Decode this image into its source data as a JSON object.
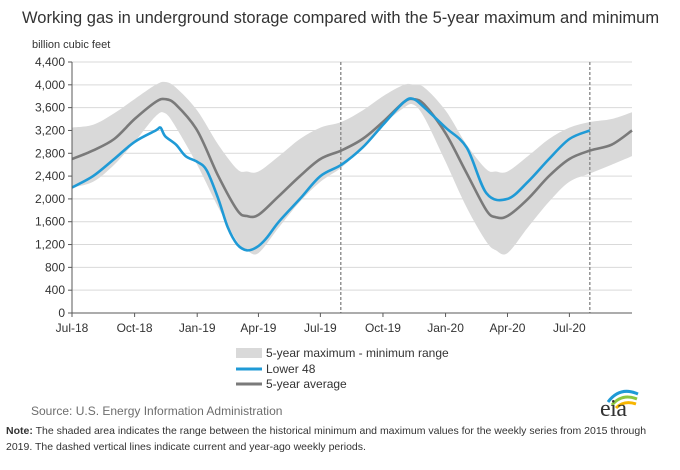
{
  "title": "Working gas in underground  storage compared with the 5-year maximum and minimum",
  "units_label": "billion cubic feet",
  "source": "Source:  U.S. Energy Information Administration",
  "note_label": "Note:",
  "note_text": " The shaded area indicates the range between the historical minimum and maximum values for the weekly series from 2015 through 2019. The dashed vertical lines indicate current and year-ago weekly periods.",
  "logo_text": "eia",
  "colors": {
    "range": "#d9d9d9",
    "lower48": "#1f9ad6",
    "average": "#7a7a7a",
    "grid": "#d9d9d9",
    "axis": "#595959",
    "logo_blue": "#1f9ad6",
    "logo_green": "#8cc63f",
    "logo_yellow": "#f7b500"
  },
  "chart_data": {
    "type": "line",
    "title": "Working gas in underground  storage compared with the 5-year maximum and minimum",
    "ylabel": "billion cubic feet",
    "ylim": [
      0,
      4400
    ],
    "yticks": [
      0,
      400,
      800,
      1200,
      1600,
      2000,
      2400,
      2800,
      3200,
      3600,
      4000,
      4400
    ],
    "ytick_labels": [
      "0",
      "400",
      "800",
      "1,200",
      "1,600",
      "2,000",
      "2,400",
      "2,800",
      "3,200",
      "3,600",
      "4,000",
      "4,400"
    ],
    "xlim": [
      "2018-07-01",
      "2020-10-01"
    ],
    "x_tick_labels": [
      {
        "date": "2018-07-01",
        "label": "Jul-18"
      },
      {
        "date": "2018-10-01",
        "label": "Oct-18"
      },
      {
        "date": "2019-01-01",
        "label": "Jan-19"
      },
      {
        "date": "2019-04-01",
        "label": "Apr-19"
      },
      {
        "date": "2019-07-01",
        "label": "Jul-19"
      },
      {
        "date": "2019-10-01",
        "label": "Oct-19"
      },
      {
        "date": "2020-01-01",
        "label": "Jan-20"
      },
      {
        "date": "2020-04-01",
        "label": "Apr-20"
      },
      {
        "date": "2020-07-01",
        "label": "Jul-20"
      }
    ],
    "grid": true,
    "legend_position": "bottom",
    "vertical_markers": [
      {
        "date": "2019-07-31",
        "style": "dashed"
      },
      {
        "date": "2020-07-31",
        "style": "dashed"
      }
    ],
    "series": [
      {
        "name": "5-year maximum - minimum range",
        "kind": "band",
        "x": [
          "2018-07-01",
          "2018-08-01",
          "2018-09-01",
          "2018-10-01",
          "2018-11-01",
          "2018-11-15",
          "2018-12-01",
          "2019-01-01",
          "2019-02-01",
          "2019-03-01",
          "2019-03-15",
          "2019-04-01",
          "2019-05-01",
          "2019-06-01",
          "2019-07-01",
          "2019-08-01",
          "2019-09-01",
          "2019-10-01",
          "2019-11-01",
          "2019-11-15",
          "2019-12-01",
          "2020-01-01",
          "2020-02-01",
          "2020-03-01",
          "2020-03-15",
          "2020-04-01",
          "2020-05-01",
          "2020-06-01",
          "2020-07-01",
          "2020-08-01",
          "2020-09-01",
          "2020-10-01"
        ],
        "max": [
          3250,
          3300,
          3500,
          3750,
          4000,
          4050,
          3950,
          3550,
          2950,
          2520,
          2480,
          2480,
          2750,
          3050,
          3250,
          3350,
          3550,
          3800,
          4000,
          4000,
          3950,
          3550,
          2950,
          2520,
          2480,
          2480,
          2750,
          3050,
          3250,
          3350,
          3400,
          3520
        ],
        "min": [
          2200,
          2300,
          2600,
          3000,
          3450,
          3500,
          3250,
          2600,
          1850,
          1250,
          1100,
          1050,
          1500,
          1950,
          2300,
          2550,
          2900,
          3300,
          3600,
          3650,
          3420,
          2650,
          1850,
          1250,
          1100,
          1050,
          1500,
          1950,
          2300,
          2450,
          2600,
          2750
        ]
      },
      {
        "name": "Lower 48",
        "kind": "line",
        "x": [
          "2018-07-01",
          "2018-08-01",
          "2018-09-01",
          "2018-10-01",
          "2018-11-01",
          "2018-11-08",
          "2018-11-15",
          "2018-12-01",
          "2018-12-15",
          "2019-01-01",
          "2019-01-15",
          "2019-02-01",
          "2019-02-15",
          "2019-03-01",
          "2019-03-15",
          "2019-03-29",
          "2019-04-12",
          "2019-05-01",
          "2019-06-01",
          "2019-07-01",
          "2019-08-01",
          "2019-09-01",
          "2019-10-01",
          "2019-11-01",
          "2019-11-15",
          "2019-12-01",
          "2020-01-01",
          "2020-02-01",
          "2020-03-01",
          "2020-04-01",
          "2020-05-01",
          "2020-06-01",
          "2020-07-01",
          "2020-07-31"
        ],
        "values": [
          2200,
          2400,
          2700,
          3000,
          3200,
          3250,
          3100,
          2950,
          2750,
          2650,
          2500,
          2000,
          1500,
          1200,
          1100,
          1150,
          1300,
          1600,
          2000,
          2400,
          2600,
          2900,
          3300,
          3700,
          3750,
          3600,
          3250,
          2900,
          2100,
          2000,
          2300,
          2700,
          3050,
          3200
        ]
      },
      {
        "name": "5-year average",
        "kind": "line",
        "x": [
          "2018-07-01",
          "2018-08-01",
          "2018-09-01",
          "2018-10-01",
          "2018-11-01",
          "2018-11-15",
          "2018-12-01",
          "2019-01-01",
          "2019-02-01",
          "2019-03-01",
          "2019-03-15",
          "2019-04-01",
          "2019-05-01",
          "2019-06-01",
          "2019-07-01",
          "2019-08-01",
          "2019-09-01",
          "2019-10-01",
          "2019-11-01",
          "2019-11-15",
          "2019-12-01",
          "2020-01-01",
          "2020-02-01",
          "2020-03-01",
          "2020-03-15",
          "2020-04-01",
          "2020-05-01",
          "2020-06-01",
          "2020-07-01",
          "2020-08-01",
          "2020-09-01",
          "2020-10-01"
        ],
        "values": [
          2700,
          2850,
          3050,
          3400,
          3700,
          3750,
          3650,
          3200,
          2400,
          1800,
          1700,
          1720,
          2050,
          2400,
          2700,
          2850,
          3050,
          3350,
          3700,
          3750,
          3650,
          3150,
          2450,
          1800,
          1680,
          1700,
          2000,
          2400,
          2700,
          2850,
          2950,
          3200
        ]
      }
    ],
    "legend": [
      {
        "label": "5-year maximum - minimum range",
        "kind": "band"
      },
      {
        "label": "Lower 48",
        "kind": "line"
      },
      {
        "label": "5-year average",
        "kind": "line"
      }
    ]
  }
}
